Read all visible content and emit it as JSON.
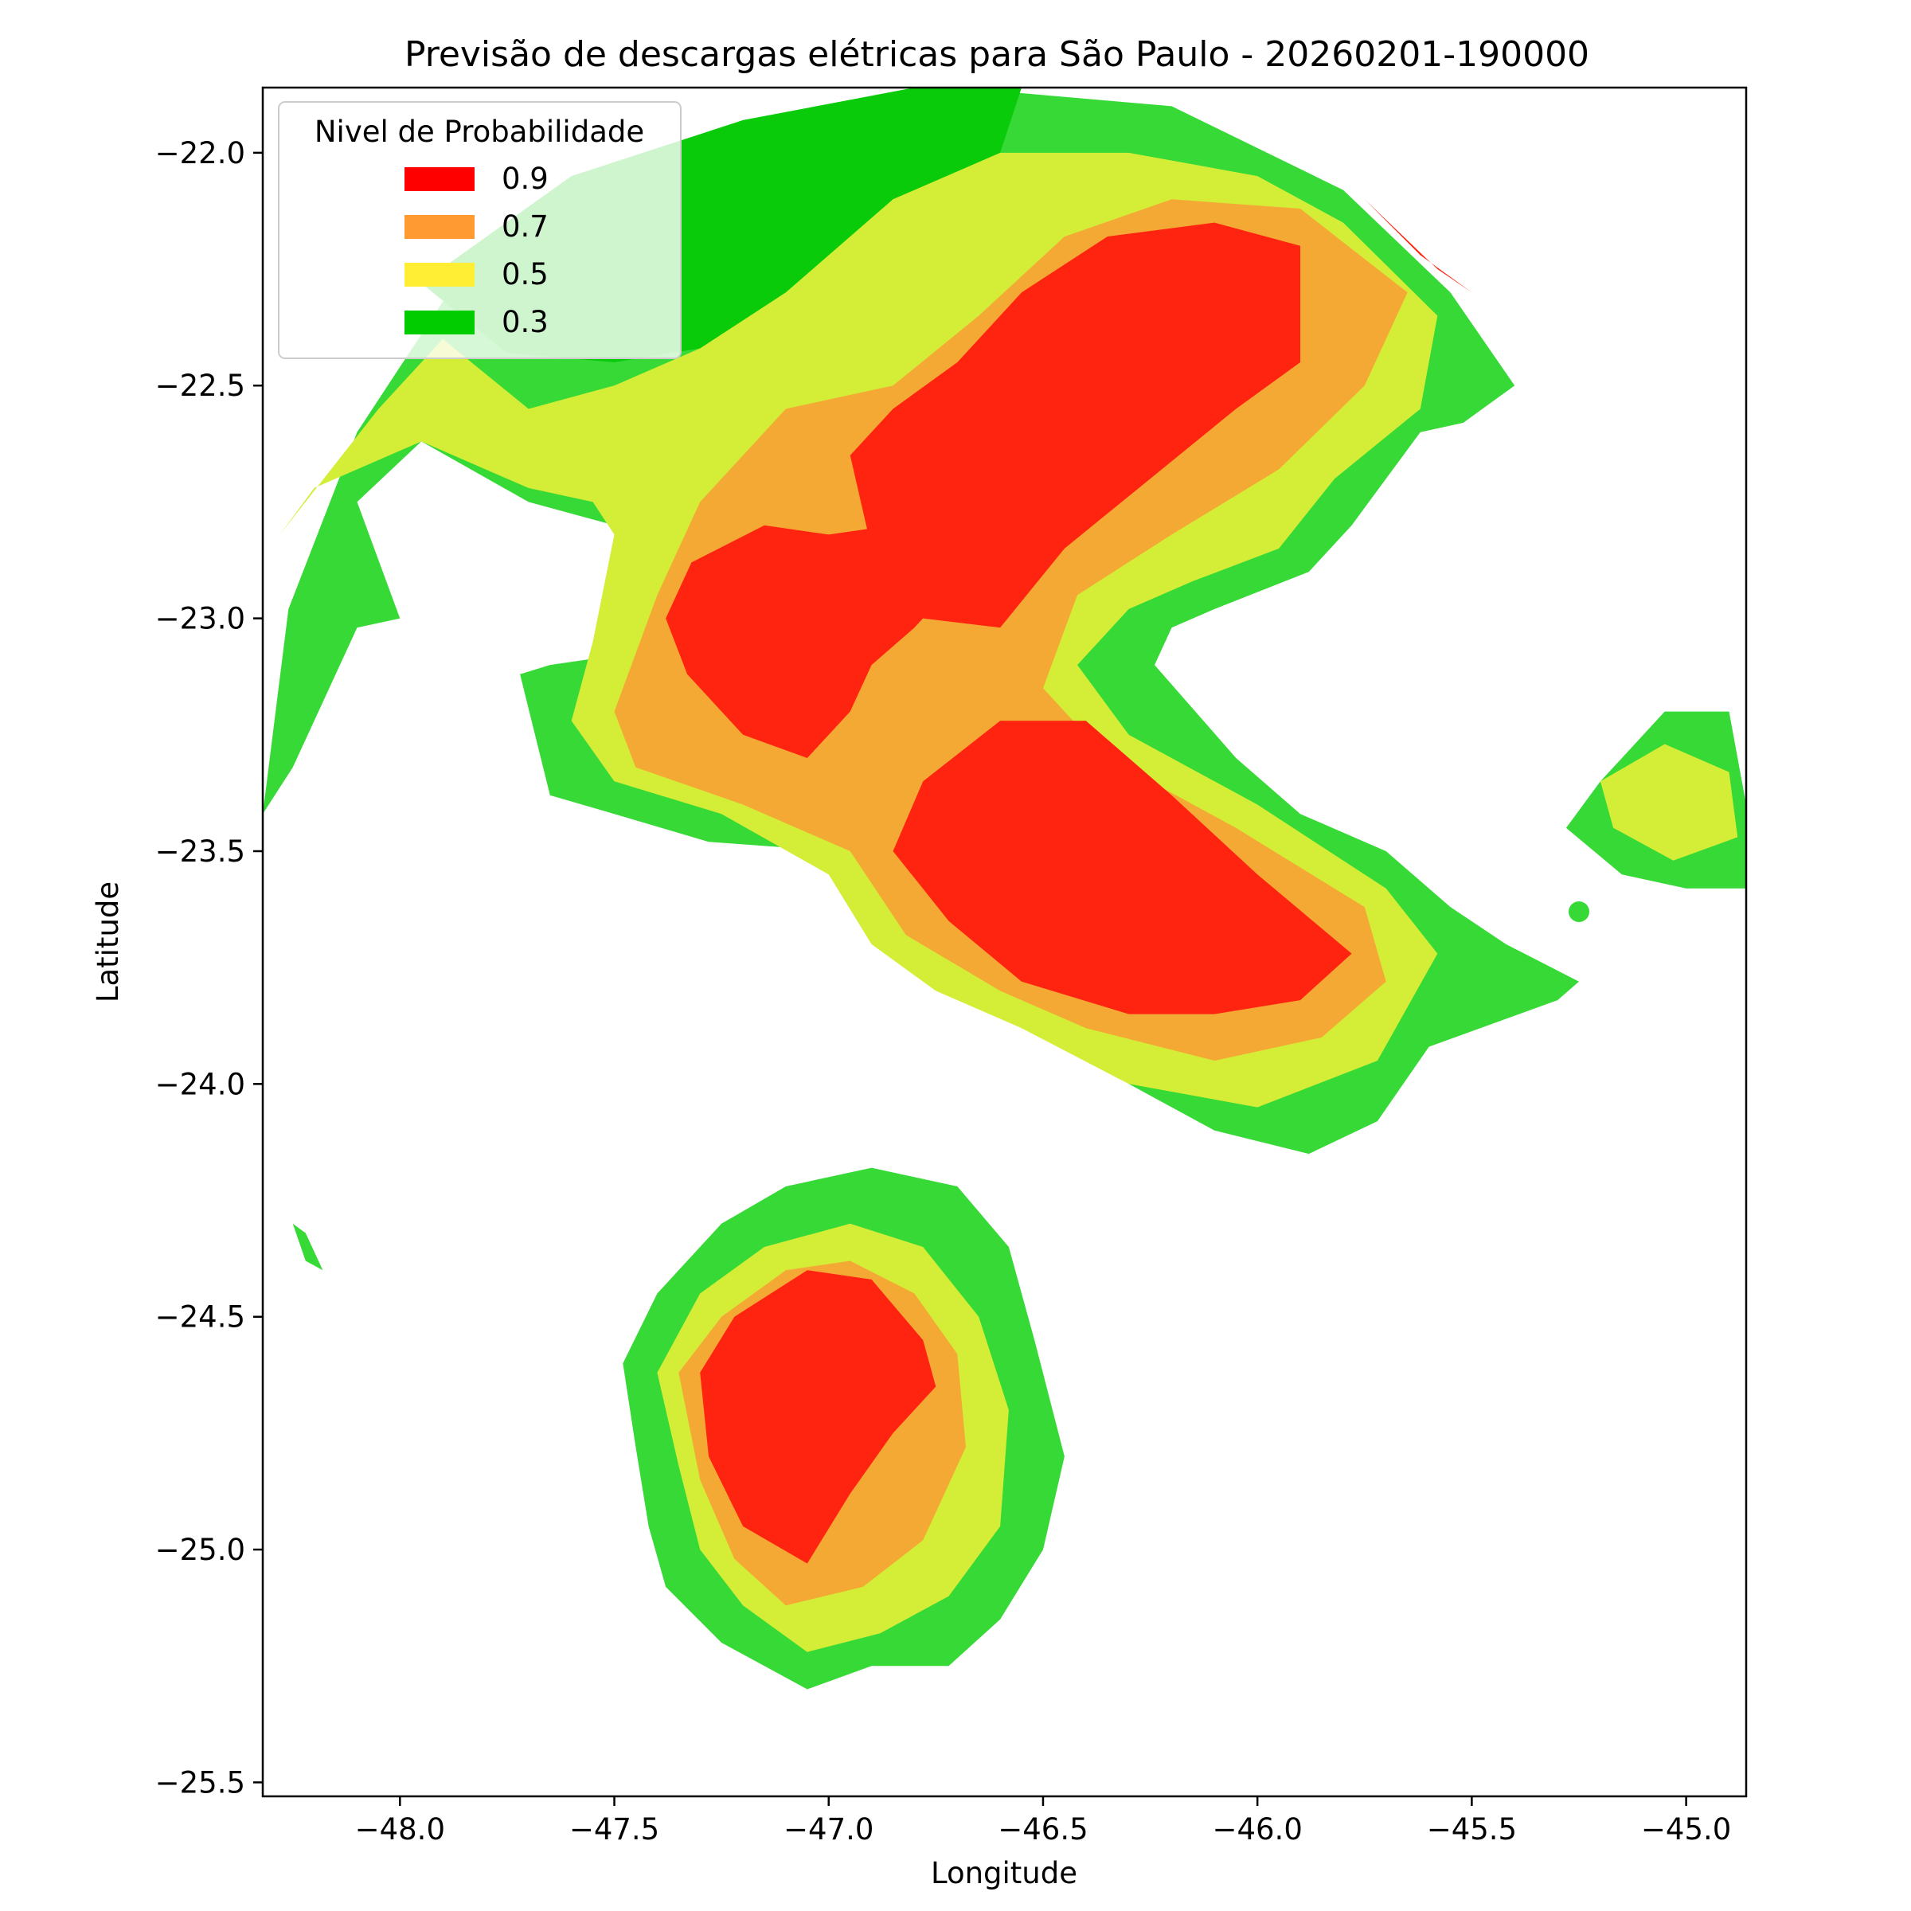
{
  "chart_data": {
    "type": "contour",
    "title": "Previsão de descargas elétricas para São Paulo - 20260201-190000",
    "xlabel": "Longitude",
    "ylabel": "Latitude",
    "xlim": [
      -48.32,
      -44.86
    ],
    "ylim": [
      -25.53,
      -21.86
    ],
    "x_ticks": [
      -48.0,
      -47.5,
      -47.0,
      -46.5,
      -46.0,
      -45.5,
      -45.0
    ],
    "y_ticks": [
      -22.0,
      -22.5,
      -23.0,
      -23.5,
      -24.0,
      -24.5,
      -25.0,
      -25.5
    ],
    "x_tick_labels": [
      "−48.0",
      "−47.5",
      "−47.0",
      "−46.5",
      "−46.0",
      "−45.5",
      "−45.0"
    ],
    "y_tick_labels": [
      "−22.0",
      "−22.5",
      "−23.0",
      "−23.5",
      "−24.0",
      "−24.5",
      "−25.0",
      "−25.5"
    ],
    "grid": false,
    "legend": {
      "title": "Nivel de Probabilidade",
      "placement": "upper-left",
      "entries": [
        {
          "label": "0.9",
          "color": "#ff0000"
        },
        {
          "label": "0.7",
          "color": "#ff9a33"
        },
        {
          "label": "0.5",
          "color": "#ffee33"
        },
        {
          "label": "0.3",
          "color": "#00cc00"
        }
      ]
    },
    "fill_colors": {
      "outer_green": "#36d936",
      "dark_green": "#0acb0a",
      "yellow": "#d4ee38",
      "orange": "#f5a935",
      "red": "#ff2410"
    },
    "regions": [
      {
        "name": "main-cluster",
        "level": 0.3,
        "color": "outer_green",
        "lonlat": [
          [
            -48.32,
            -23.42
          ],
          [
            -48.26,
            -22.98
          ],
          [
            -48.1,
            -22.6
          ],
          [
            -47.9,
            -22.32
          ],
          [
            -47.6,
            -22.1
          ],
          [
            -47.2,
            -21.93
          ],
          [
            -46.7,
            -21.86
          ],
          [
            -46.2,
            -21.9
          ],
          [
            -45.8,
            -22.08
          ],
          [
            -45.55,
            -22.3
          ],
          [
            -45.4,
            -22.5
          ],
          [
            -45.52,
            -22.58
          ],
          [
            -45.62,
            -22.6
          ],
          [
            -45.78,
            -22.8
          ],
          [
            -45.88,
            -22.9
          ],
          [
            -46.1,
            -22.98
          ],
          [
            -46.2,
            -23.02
          ],
          [
            -46.24,
            -23.1
          ],
          [
            -46.05,
            -23.3
          ],
          [
            -45.9,
            -23.42
          ],
          [
            -45.7,
            -23.5
          ],
          [
            -45.55,
            -23.62
          ],
          [
            -45.42,
            -23.7
          ],
          [
            -45.25,
            -23.78
          ],
          [
            -45.3,
            -23.82
          ],
          [
            -45.6,
            -23.92
          ],
          [
            -45.72,
            -24.08
          ],
          [
            -45.88,
            -24.15
          ],
          [
            -46.1,
            -24.1
          ],
          [
            -46.3,
            -24.0
          ],
          [
            -46.52,
            -23.86
          ],
          [
            -46.7,
            -23.78
          ],
          [
            -46.82,
            -23.66
          ],
          [
            -46.98,
            -23.5
          ],
          [
            -47.28,
            -23.48
          ],
          [
            -47.5,
            -23.42
          ],
          [
            -47.65,
            -23.38
          ],
          [
            -47.72,
            -23.12
          ],
          [
            -47.65,
            -23.1
          ],
          [
            -47.5,
            -23.08
          ],
          [
            -47.45,
            -22.9
          ],
          [
            -47.5,
            -22.8
          ],
          [
            -47.7,
            -22.75
          ],
          [
            -47.95,
            -22.62
          ],
          [
            -48.1,
            -22.75
          ],
          [
            -48.0,
            -23.0
          ],
          [
            -48.1,
            -23.02
          ],
          [
            -48.25,
            -23.32
          ],
          [
            -48.32,
            -23.42
          ]
        ]
      },
      {
        "name": "main-cluster-top-dark",
        "level": 0.3,
        "color": "dark_green",
        "lonlat": [
          [
            -47.95,
            -22.28
          ],
          [
            -47.6,
            -22.05
          ],
          [
            -47.2,
            -21.93
          ],
          [
            -46.8,
            -21.86
          ],
          [
            -46.55,
            -21.86
          ],
          [
            -46.6,
            -22.0
          ],
          [
            -46.8,
            -22.1
          ],
          [
            -47.0,
            -22.22
          ],
          [
            -47.15,
            -22.4
          ],
          [
            -47.3,
            -22.42
          ],
          [
            -47.5,
            -22.45
          ],
          [
            -47.75,
            -22.43
          ],
          [
            -47.95,
            -22.28
          ]
        ]
      },
      {
        "name": "main-cluster-yellow",
        "level": 0.5,
        "color": "yellow",
        "lonlat": [
          [
            -48.28,
            -22.82
          ],
          [
            -48.05,
            -22.55
          ],
          [
            -47.9,
            -22.4
          ],
          [
            -47.7,
            -22.55
          ],
          [
            -47.5,
            -22.5
          ],
          [
            -47.3,
            -22.42
          ],
          [
            -47.1,
            -22.3
          ],
          [
            -46.85,
            -22.1
          ],
          [
            -46.6,
            -22.0
          ],
          [
            -46.3,
            -22.0
          ],
          [
            -46.0,
            -22.05
          ],
          [
            -45.8,
            -22.15
          ],
          [
            -45.58,
            -22.35
          ],
          [
            -45.62,
            -22.55
          ],
          [
            -45.82,
            -22.7
          ],
          [
            -45.95,
            -22.85
          ],
          [
            -46.15,
            -22.92
          ],
          [
            -46.3,
            -22.98
          ],
          [
            -46.42,
            -23.1
          ],
          [
            -46.3,
            -23.25
          ],
          [
            -46.0,
            -23.4
          ],
          [
            -45.7,
            -23.58
          ],
          [
            -45.58,
            -23.72
          ],
          [
            -45.72,
            -23.95
          ],
          [
            -46.0,
            -24.05
          ],
          [
            -46.3,
            -24.0
          ],
          [
            -46.55,
            -23.88
          ],
          [
            -46.75,
            -23.8
          ],
          [
            -46.9,
            -23.7
          ],
          [
            -47.0,
            -23.55
          ],
          [
            -47.25,
            -23.42
          ],
          [
            -47.5,
            -23.35
          ],
          [
            -47.6,
            -23.22
          ],
          [
            -47.55,
            -23.05
          ],
          [
            -47.5,
            -22.82
          ],
          [
            -47.55,
            -22.75
          ],
          [
            -47.7,
            -22.72
          ],
          [
            -47.95,
            -22.62
          ],
          [
            -48.2,
            -22.72
          ],
          [
            -48.28,
            -22.82
          ]
        ]
      },
      {
        "name": "main-cluster-orange",
        "level": 0.7,
        "color": "orange",
        "lonlat": [
          [
            -47.5,
            -23.2
          ],
          [
            -47.4,
            -22.95
          ],
          [
            -47.3,
            -22.75
          ],
          [
            -47.1,
            -22.55
          ],
          [
            -46.85,
            -22.5
          ],
          [
            -46.65,
            -22.35
          ],
          [
            -46.45,
            -22.18
          ],
          [
            -46.2,
            -22.1
          ],
          [
            -45.9,
            -22.12
          ],
          [
            -45.65,
            -22.3
          ],
          [
            -45.75,
            -22.5
          ],
          [
            -45.95,
            -22.68
          ],
          [
            -46.2,
            -22.82
          ],
          [
            -46.42,
            -22.95
          ],
          [
            -46.5,
            -23.15
          ],
          [
            -46.35,
            -23.3
          ],
          [
            -46.05,
            -23.45
          ],
          [
            -45.75,
            -23.62
          ],
          [
            -45.7,
            -23.78
          ],
          [
            -45.85,
            -23.9
          ],
          [
            -46.1,
            -23.95
          ],
          [
            -46.4,
            -23.88
          ],
          [
            -46.6,
            -23.8
          ],
          [
            -46.82,
            -23.68
          ],
          [
            -46.95,
            -23.5
          ],
          [
            -47.2,
            -23.4
          ],
          [
            -47.45,
            -23.32
          ],
          [
            -47.5,
            -23.2
          ]
        ]
      },
      {
        "name": "main-cluster-red-west",
        "level": 0.9,
        "color": "red",
        "lonlat": [
          [
            -47.38,
            -23.0
          ],
          [
            -47.32,
            -22.88
          ],
          [
            -47.15,
            -22.8
          ],
          [
            -47.0,
            -22.82
          ],
          [
            -46.85,
            -22.8
          ],
          [
            -46.7,
            -22.92
          ],
          [
            -46.8,
            -23.02
          ],
          [
            -46.9,
            -23.1
          ],
          [
            -46.95,
            -23.2
          ],
          [
            -47.05,
            -23.3
          ],
          [
            -47.2,
            -23.25
          ],
          [
            -47.33,
            -23.12
          ],
          [
            -47.38,
            -23.0
          ]
        ]
      },
      {
        "name": "main-cluster-red-north",
        "level": 0.9,
        "color": "red",
        "lonlat": [
          [
            -46.95,
            -22.65
          ],
          [
            -46.9,
            -22.85
          ],
          [
            -46.78,
            -23.0
          ],
          [
            -46.6,
            -23.02
          ],
          [
            -46.45,
            -22.85
          ],
          [
            -46.25,
            -22.7
          ],
          [
            -46.05,
            -22.55
          ],
          [
            -45.9,
            -22.45
          ],
          [
            -45.9,
            -22.2
          ],
          [
            -46.1,
            -22.15
          ],
          [
            -46.35,
            -22.18
          ],
          [
            -46.55,
            -22.3
          ],
          [
            -46.7,
            -22.45
          ],
          [
            -46.85,
            -22.55
          ],
          [
            -46.95,
            -22.65
          ]
        ]
      },
      {
        "name": "main-cluster-red-south",
        "level": 0.9,
        "color": "red",
        "lonlat": [
          [
            -46.85,
            -23.5
          ],
          [
            -46.78,
            -23.35
          ],
          [
            -46.6,
            -23.22
          ],
          [
            -46.4,
            -23.22
          ],
          [
            -46.2,
            -23.38
          ],
          [
            -46.0,
            -23.55
          ],
          [
            -45.78,
            -23.72
          ],
          [
            -45.9,
            -23.82
          ],
          [
            -46.1,
            -23.85
          ],
          [
            -46.3,
            -23.85
          ],
          [
            -46.55,
            -23.78
          ],
          [
            -46.72,
            -23.65
          ],
          [
            -46.85,
            -23.5
          ]
        ]
      },
      {
        "name": "main-cluster-red-northeast",
        "level": 0.9,
        "color": "red",
        "lonlat": [
          [
            -45.75,
            -22.1
          ],
          [
            -45.58,
            -22.25
          ],
          [
            -45.5,
            -22.3
          ],
          [
            -45.62,
            -22.22
          ],
          [
            -45.75,
            -22.1
          ]
        ]
      },
      {
        "name": "east-cell",
        "level": 0.3,
        "color": "outer_green",
        "lonlat": [
          [
            -45.28,
            -23.45
          ],
          [
            -45.2,
            -23.35
          ],
          [
            -45.05,
            -23.2
          ],
          [
            -44.9,
            -23.2
          ],
          [
            -44.86,
            -23.4
          ],
          [
            -44.86,
            -23.58
          ],
          [
            -45.0,
            -23.58
          ],
          [
            -45.15,
            -23.55
          ],
          [
            -45.28,
            -23.45
          ]
        ]
      },
      {
        "name": "east-cell-yellow",
        "level": 0.5,
        "color": "yellow",
        "lonlat": [
          [
            -45.2,
            -23.35
          ],
          [
            -45.05,
            -23.27
          ],
          [
            -44.9,
            -23.33
          ],
          [
            -44.88,
            -23.47
          ],
          [
            -45.03,
            -23.52
          ],
          [
            -45.17,
            -23.45
          ],
          [
            -45.2,
            -23.35
          ]
        ]
      },
      {
        "name": "south-cell",
        "level": 0.3,
        "color": "outer_green",
        "lonlat": [
          [
            -47.48,
            -24.6
          ],
          [
            -47.4,
            -24.45
          ],
          [
            -47.25,
            -24.3
          ],
          [
            -47.1,
            -24.22
          ],
          [
            -46.9,
            -24.18
          ],
          [
            -46.7,
            -24.22
          ],
          [
            -46.58,
            -24.35
          ],
          [
            -46.52,
            -24.55
          ],
          [
            -46.45,
            -24.8
          ],
          [
            -46.5,
            -25.0
          ],
          [
            -46.6,
            -25.15
          ],
          [
            -46.72,
            -25.25
          ],
          [
            -46.9,
            -25.25
          ],
          [
            -47.05,
            -25.3
          ],
          [
            -47.25,
            -25.2
          ],
          [
            -47.38,
            -25.08
          ],
          [
            -47.42,
            -24.95
          ],
          [
            -47.45,
            -24.78
          ],
          [
            -47.48,
            -24.6
          ]
        ]
      },
      {
        "name": "south-cell-yellow",
        "level": 0.5,
        "color": "yellow",
        "lonlat": [
          [
            -47.4,
            -24.62
          ],
          [
            -47.3,
            -24.45
          ],
          [
            -47.15,
            -24.35
          ],
          [
            -46.95,
            -24.3
          ],
          [
            -46.78,
            -24.35
          ],
          [
            -46.65,
            -24.5
          ],
          [
            -46.58,
            -24.7
          ],
          [
            -46.6,
            -24.95
          ],
          [
            -46.72,
            -25.1
          ],
          [
            -46.88,
            -25.18
          ],
          [
            -47.05,
            -25.22
          ],
          [
            -47.2,
            -25.12
          ],
          [
            -47.3,
            -25.0
          ],
          [
            -47.35,
            -24.82
          ],
          [
            -47.4,
            -24.62
          ]
        ]
      },
      {
        "name": "south-cell-orange",
        "level": 0.7,
        "color": "orange",
        "lonlat": [
          [
            -47.35,
            -24.62
          ],
          [
            -47.25,
            -24.5
          ],
          [
            -47.1,
            -24.4
          ],
          [
            -46.95,
            -24.38
          ],
          [
            -46.8,
            -24.45
          ],
          [
            -46.7,
            -24.58
          ],
          [
            -46.68,
            -24.78
          ],
          [
            -46.78,
            -24.98
          ],
          [
            -46.92,
            -25.08
          ],
          [
            -47.1,
            -25.12
          ],
          [
            -47.22,
            -25.02
          ],
          [
            -47.3,
            -24.85
          ],
          [
            -47.35,
            -24.62
          ]
        ]
      },
      {
        "name": "south-cell-red",
        "level": 0.9,
        "color": "red",
        "lonlat": [
          [
            -47.3,
            -24.62
          ],
          [
            -47.22,
            -24.5
          ],
          [
            -47.05,
            -24.4
          ],
          [
            -46.9,
            -24.42
          ],
          [
            -46.78,
            -24.55
          ],
          [
            -46.75,
            -24.65
          ],
          [
            -46.85,
            -24.75
          ],
          [
            -46.95,
            -24.88
          ],
          [
            -47.05,
            -25.03
          ],
          [
            -47.2,
            -24.95
          ],
          [
            -47.28,
            -24.8
          ],
          [
            -47.3,
            -24.62
          ]
        ]
      },
      {
        "name": "speck-west",
        "level": 0.3,
        "color": "outer_green",
        "lonlat": [
          [
            -48.25,
            -24.3
          ],
          [
            -48.22,
            -24.32
          ],
          [
            -48.18,
            -24.4
          ],
          [
            -48.22,
            -24.38
          ],
          [
            -48.25,
            -24.3
          ]
        ]
      }
    ],
    "dots": [
      {
        "lon": -45.25,
        "lat": -23.63,
        "color": "outer_green"
      },
      {
        "lon": -47.37,
        "lat": -24.99,
        "color": "outer_green"
      }
    ]
  }
}
